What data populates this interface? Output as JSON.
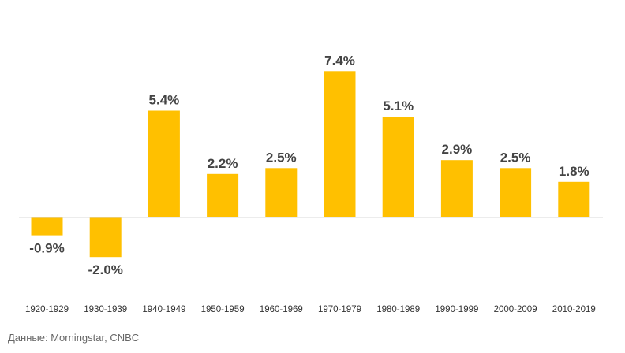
{
  "chart_data": {
    "type": "bar",
    "title": "",
    "xlabel": "",
    "ylabel": "",
    "categories": [
      "1920-1929",
      "1930-1939",
      "1940-1949",
      "1950-1959",
      "1960-1969",
      "1970-1979",
      "1980-1989",
      "1990-1999",
      "2000-2009",
      "2010-2019"
    ],
    "values": [
      -0.9,
      -2.0,
      5.4,
      2.2,
      2.5,
      7.4,
      5.1,
      2.9,
      2.5,
      1.8
    ],
    "value_labels": [
      "-0.9%",
      "-2.0%",
      "5.4%",
      "2.2%",
      "2.5%",
      "7.4%",
      "5.1%",
      "2.9%",
      "2.5%",
      "1.8%"
    ],
    "ylim": [
      -2.0,
      7.4
    ],
    "grid": false,
    "legend": "none",
    "bar_color": "#FFC000",
    "baseline_color": "#D9D9D9"
  },
  "source": "Данные: Morningstar, CNBC"
}
